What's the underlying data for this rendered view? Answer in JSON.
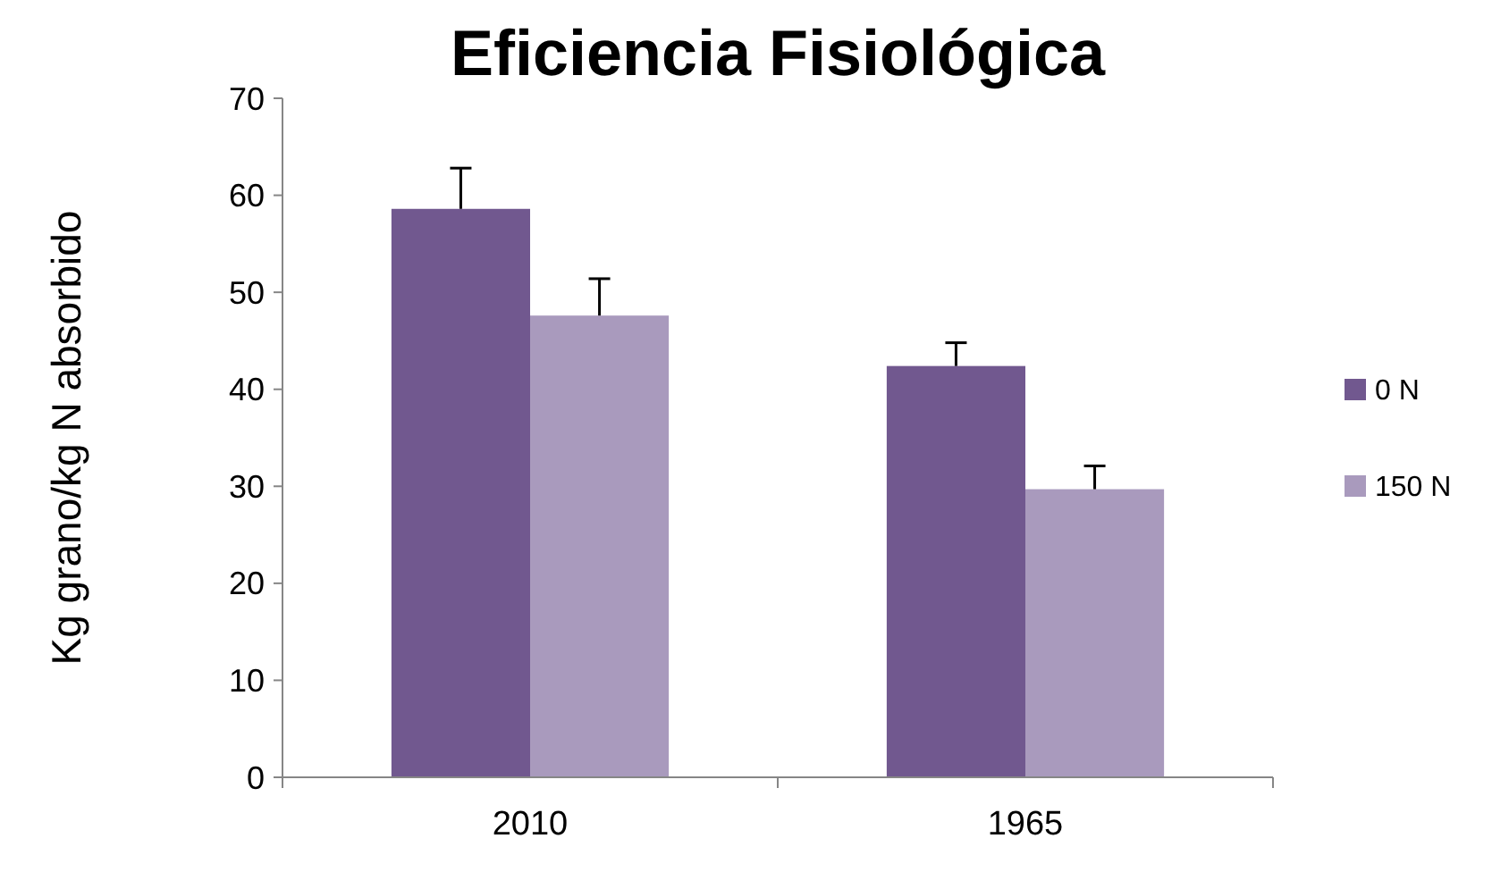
{
  "chart_data": {
    "type": "bar",
    "title": "Eficiencia Fisiológica",
    "ylabel": "Kg grano/kg N absorbido",
    "categories": [
      "2010",
      "1965"
    ],
    "series": [
      {
        "name": "0 N",
        "color": "#71588f",
        "values": [
          58.6,
          42.4
        ],
        "errors": [
          [
            58.6,
            62.8
          ],
          [
            42.4,
            44.8
          ]
        ]
      },
      {
        "name": "150 N",
        "color": "#a99abd",
        "values": [
          47.6,
          29.7
        ],
        "errors": [
          [
            47.6,
            51.4
          ],
          [
            29.7,
            32.1
          ]
        ]
      }
    ],
    "ylim": [
      0,
      70
    ],
    "yticks": [
      0,
      10,
      20,
      30,
      40,
      50,
      60,
      70
    ],
    "grid": false,
    "legend": "right"
  }
}
